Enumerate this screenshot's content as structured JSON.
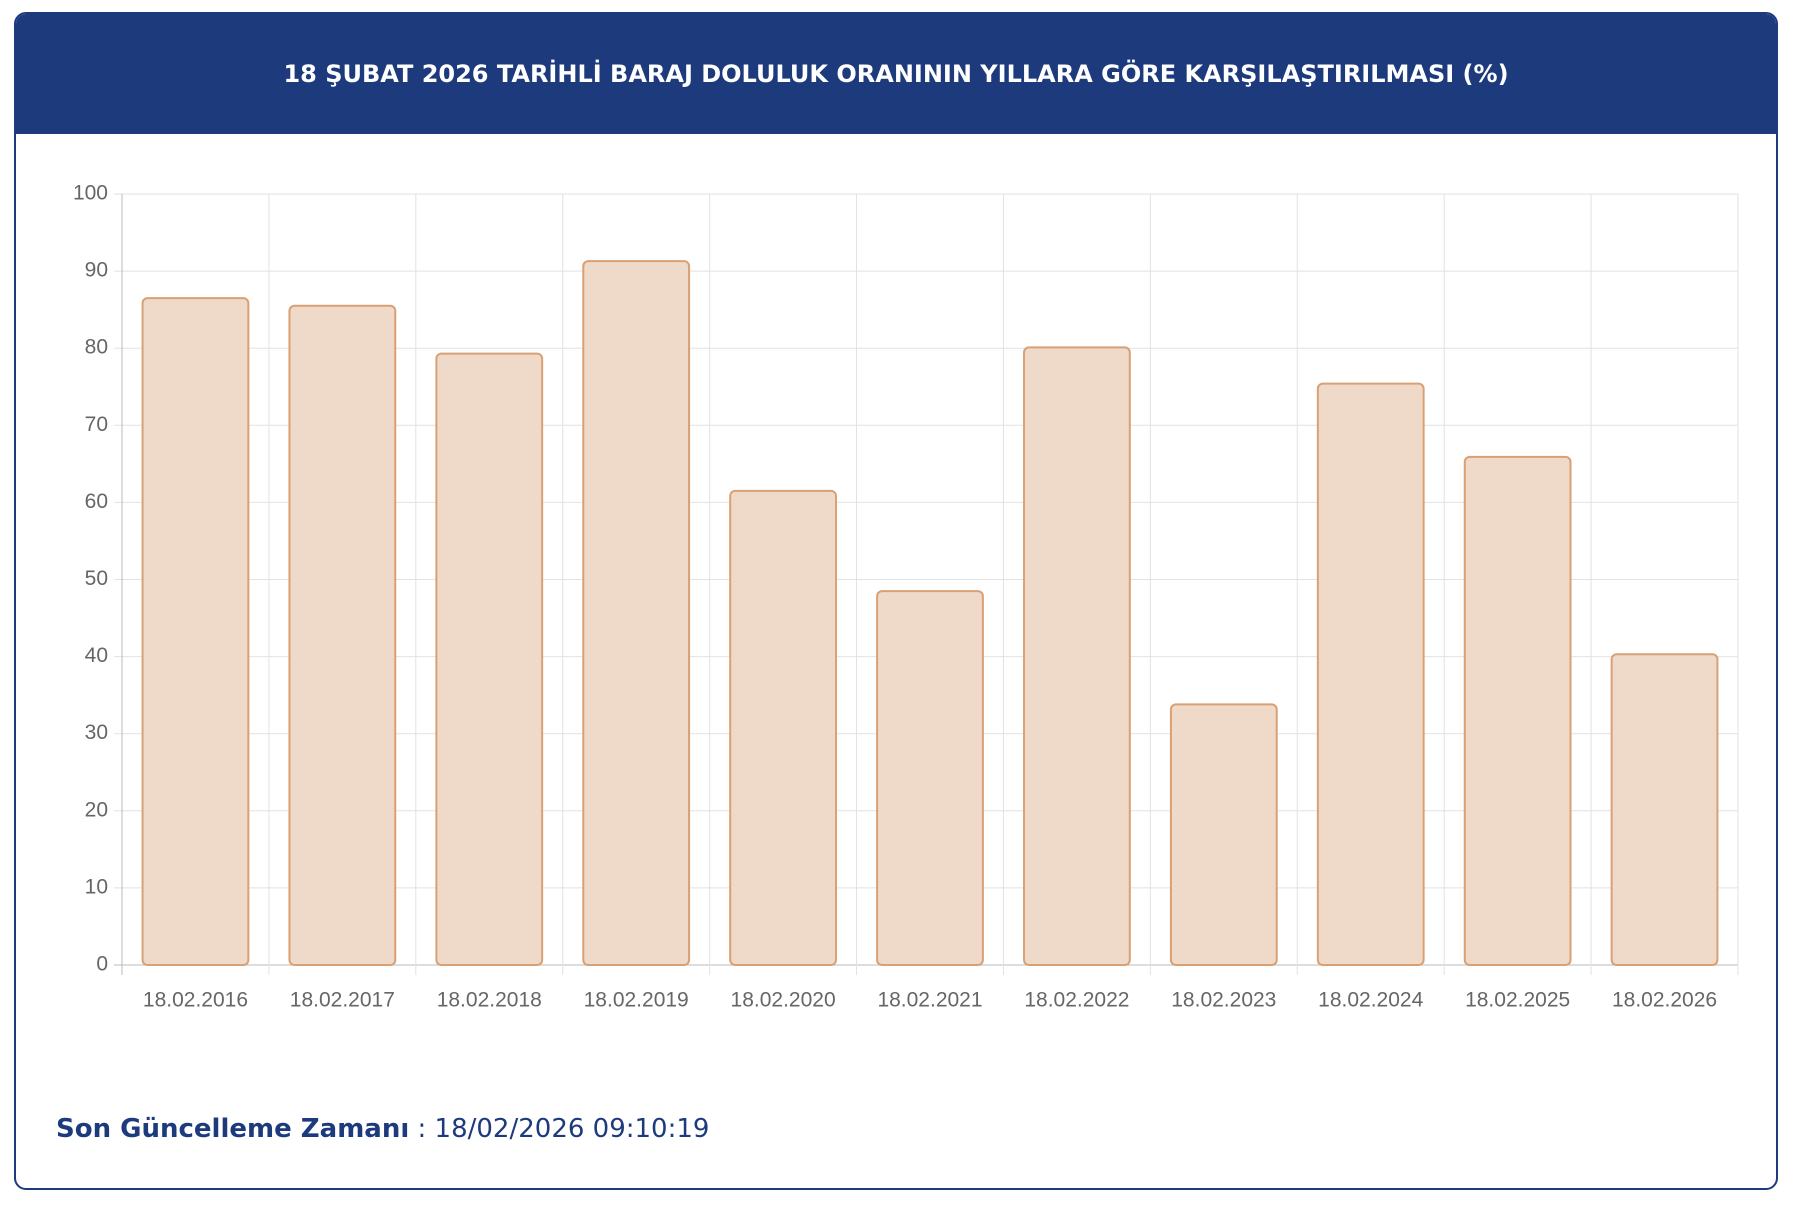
{
  "chart_data": {
    "type": "bar",
    "title": "18 ŞUBAT 2026 TARİHLİ BARAJ DOLULUK ORANININ YILLARA GÖRE KARŞILAŞTIRILMASI (%)",
    "categories": [
      "18.02.2016",
      "18.02.2017",
      "18.02.2018",
      "18.02.2019",
      "18.02.2020",
      "18.02.2021",
      "18.02.2022",
      "18.02.2023",
      "18.02.2024",
      "18.02.2025",
      "18.02.2026"
    ],
    "values": [
      86.5,
      85.5,
      79.3,
      91.3,
      61.5,
      48.5,
      80.1,
      33.8,
      75.4,
      65.9,
      40.3
    ],
    "color": "#efdaca",
    "border_color": "#d9a074",
    "ylim": [
      0,
      100
    ],
    "yticks": [
      0,
      10,
      20,
      30,
      40,
      50,
      60,
      70,
      80,
      90,
      100
    ],
    "grid": true
  },
  "footer": {
    "label": "Son Güncelleme Zamanı",
    "separator": ":",
    "value": "18/02/2026 09:10:19"
  }
}
